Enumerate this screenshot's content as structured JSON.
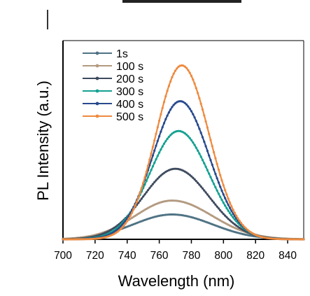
{
  "chart_data": {
    "type": "line",
    "xlabel": "Wavelength (nm)",
    "ylabel": "PL Intensity (a.u.)",
    "xlim": [
      700,
      850
    ],
    "xticks": [
      700,
      720,
      740,
      760,
      780,
      800,
      820,
      840
    ],
    "ylim": [
      0,
      1.0
    ],
    "y_tick_labels_shown": false,
    "legend_position": "top-left",
    "series": [
      {
        "name": "1s",
        "color": "#4f7384",
        "peak_x": 768,
        "peak_y": 0.125,
        "sigma_left": 24,
        "sigma_right": 25
      },
      {
        "name": "100 s",
        "color": "#b39a80",
        "peak_x": 768,
        "peak_y": 0.195,
        "sigma_left": 23,
        "sigma_right": 25
      },
      {
        "name": "200 s",
        "color": "#3e4a5e",
        "peak_x": 770,
        "peak_y": 0.355,
        "sigma_left": 20,
        "sigma_right": 21
      },
      {
        "name": "300 s",
        "color": "#14a191",
        "peak_x": 772,
        "peak_y": 0.545,
        "sigma_left": 18,
        "sigma_right": 19
      },
      {
        "name": "400 s",
        "color": "#284a8c",
        "peak_x": 773,
        "peak_y": 0.695,
        "sigma_left": 17,
        "sigma_right": 18
      },
      {
        "name": "500 s",
        "color": "#ee8a3f",
        "peak_x": 774,
        "peak_y": 0.875,
        "sigma_left": 16,
        "sigma_right": 17
      }
    ]
  }
}
